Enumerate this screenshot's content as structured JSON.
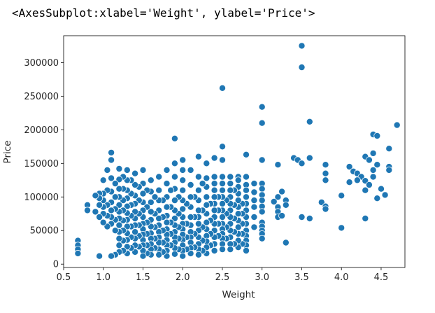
{
  "output_repr": "<AxesSubplot:xlabel='Weight', ylabel='Price'>",
  "chart_data": {
    "type": "scatter",
    "xlabel": "Weight",
    "ylabel": "Price",
    "xlim": [
      0.5,
      4.8
    ],
    "ylim": [
      -5000,
      340000
    ],
    "xticks": [
      0.5,
      1.0,
      1.5,
      2.0,
      2.5,
      3.0,
      3.5,
      4.0,
      4.5
    ],
    "xtick_labels": [
      "0.5",
      "1.0",
      "1.5",
      "2.0",
      "2.5",
      "3.0",
      "3.5",
      "4.0",
      "4.5"
    ],
    "yticks": [
      0,
      50000,
      100000,
      150000,
      200000,
      250000,
      300000
    ],
    "ytick_labels": [
      "0",
      "50000",
      "100000",
      "150000",
      "200000",
      "250000",
      "300000"
    ],
    "grid": false,
    "marker_color": "#1f77b4",
    "marker_edge_color": "#ffffff",
    "points": [
      [
        3.5,
        325000
      ],
      [
        3.5,
        293000
      ],
      [
        2.5,
        262000
      ],
      [
        3.0,
        234000
      ],
      [
        3.0,
        210000
      ],
      [
        3.6,
        212000
      ],
      [
        1.9,
        187000
      ],
      [
        4.7,
        207000
      ],
      [
        4.4,
        193000
      ],
      [
        4.45,
        191000
      ],
      [
        2.5,
        175000
      ],
      [
        4.6,
        172000
      ],
      [
        2.8,
        163000
      ],
      [
        1.1,
        166000
      ],
      [
        3.4,
        158000
      ],
      [
        3.45,
        155000
      ],
      [
        3.5,
        150000
      ],
      [
        3.6,
        158000
      ],
      [
        4.3,
        160000
      ],
      [
        4.35,
        155000
      ],
      [
        4.4,
        165000
      ],
      [
        4.45,
        148000
      ],
      [
        4.1,
        145000
      ],
      [
        4.15,
        138000
      ],
      [
        4.2,
        135000
      ],
      [
        4.25,
        130000
      ],
      [
        4.3,
        124000
      ],
      [
        4.2,
        125000
      ],
      [
        4.6,
        145000
      ],
      [
        4.6,
        140000
      ],
      [
        4.5,
        112000
      ],
      [
        4.55,
        103000
      ],
      [
        4.45,
        98000
      ],
      [
        4.3,
        110000
      ],
      [
        4.35,
        118000
      ],
      [
        4.4,
        130000
      ],
      [
        4.4,
        140000
      ],
      [
        4.1,
        122000
      ],
      [
        4.0,
        102000
      ],
      [
        3.8,
        148000
      ],
      [
        3.8,
        135000
      ],
      [
        3.8,
        125000
      ],
      [
        3.75,
        92000
      ],
      [
        3.8,
        86000
      ],
      [
        3.8,
        82000
      ],
      [
        3.5,
        70000
      ],
      [
        3.6,
        68000
      ],
      [
        4.0,
        54000
      ],
      [
        4.3,
        68000
      ],
      [
        3.3,
        32000
      ],
      [
        3.25,
        108000
      ],
      [
        3.3,
        95000
      ],
      [
        3.3,
        88000
      ],
      [
        3.2,
        148000
      ],
      [
        3.2,
        100000
      ],
      [
        3.15,
        93000
      ],
      [
        3.2,
        85000
      ],
      [
        3.2,
        78000
      ],
      [
        3.2,
        70000
      ],
      [
        3.25,
        72000
      ],
      [
        3.0,
        155000
      ],
      [
        3.0,
        120000
      ],
      [
        3.0,
        112000
      ],
      [
        3.0,
        103000
      ],
      [
        3.0,
        95000
      ],
      [
        3.0,
        86000
      ],
      [
        3.0,
        78000
      ],
      [
        3.0,
        62000
      ],
      [
        3.0,
        56000
      ],
      [
        3.0,
        50000
      ],
      [
        3.0,
        45000
      ],
      [
        3.0,
        38000
      ],
      [
        2.9,
        120000
      ],
      [
        2.9,
        107000
      ],
      [
        2.9,
        95000
      ],
      [
        2.9,
        85000
      ],
      [
        2.9,
        70000
      ],
      [
        2.9,
        55000
      ],
      [
        2.8,
        130000
      ],
      [
        2.8,
        118000
      ],
      [
        2.8,
        110000
      ],
      [
        2.8,
        100000
      ],
      [
        2.8,
        90000
      ],
      [
        2.8,
        80000
      ],
      [
        2.8,
        70000
      ],
      [
        2.8,
        60000
      ],
      [
        2.8,
        50000
      ],
      [
        2.8,
        42000
      ],
      [
        2.8,
        35000
      ],
      [
        2.8,
        28000
      ],
      [
        2.8,
        20000
      ],
      [
        2.75,
        90000
      ],
      [
        2.75,
        75000
      ],
      [
        2.75,
        60000
      ],
      [
        2.75,
        45000
      ],
      [
        2.75,
        30000
      ],
      [
        2.7,
        130000
      ],
      [
        2.7,
        125000
      ],
      [
        2.7,
        115000
      ],
      [
        2.7,
        105000
      ],
      [
        2.7,
        95000
      ],
      [
        2.7,
        85000
      ],
      [
        2.7,
        75000
      ],
      [
        2.7,
        65000
      ],
      [
        2.7,
        55000
      ],
      [
        2.7,
        45000
      ],
      [
        2.7,
        35000
      ],
      [
        2.7,
        25000
      ],
      [
        2.65,
        110000
      ],
      [
        2.65,
        88000
      ],
      [
        2.65,
        68000
      ],
      [
        2.65,
        48000
      ],
      [
        2.65,
        30000
      ],
      [
        2.6,
        130000
      ],
      [
        2.6,
        120000
      ],
      [
        2.6,
        110000
      ],
      [
        2.6,
        100000
      ],
      [
        2.6,
        90000
      ],
      [
        2.6,
        80000
      ],
      [
        2.6,
        70000
      ],
      [
        2.6,
        60000
      ],
      [
        2.6,
        50000
      ],
      [
        2.6,
        40000
      ],
      [
        2.6,
        30000
      ],
      [
        2.6,
        22000
      ],
      [
        2.55,
        95000
      ],
      [
        2.55,
        75000
      ],
      [
        2.55,
        55000
      ],
      [
        2.55,
        38000
      ],
      [
        2.5,
        155000
      ],
      [
        2.5,
        130000
      ],
      [
        2.5,
        120000
      ],
      [
        2.5,
        110000
      ],
      [
        2.5,
        100000
      ],
      [
        2.5,
        90000
      ],
      [
        2.5,
        80000
      ],
      [
        2.5,
        70000
      ],
      [
        2.5,
        60000
      ],
      [
        2.5,
        52000
      ],
      [
        2.5,
        45000
      ],
      [
        2.5,
        38000
      ],
      [
        2.5,
        30000
      ],
      [
        2.5,
        22000
      ],
      [
        2.45,
        100000
      ],
      [
        2.45,
        80000
      ],
      [
        2.45,
        60000
      ],
      [
        2.45,
        42000
      ],
      [
        2.4,
        158000
      ],
      [
        2.4,
        130000
      ],
      [
        2.4,
        120000
      ],
      [
        2.4,
        110000
      ],
      [
        2.4,
        100000
      ],
      [
        2.4,
        90000
      ],
      [
        2.4,
        80000
      ],
      [
        2.4,
        70000
      ],
      [
        2.4,
        60000
      ],
      [
        2.4,
        50000
      ],
      [
        2.4,
        40000
      ],
      [
        2.4,
        30000
      ],
      [
        2.4,
        20000
      ],
      [
        2.35,
        90000
      ],
      [
        2.35,
        65000
      ],
      [
        2.35,
        45000
      ],
      [
        2.35,
        28000
      ],
      [
        2.3,
        150000
      ],
      [
        2.3,
        128000
      ],
      [
        2.3,
        115000
      ],
      [
        2.3,
        100000
      ],
      [
        2.3,
        88000
      ],
      [
        2.3,
        75000
      ],
      [
        2.3,
        62000
      ],
      [
        2.3,
        52000
      ],
      [
        2.3,
        42000
      ],
      [
        2.3,
        34000
      ],
      [
        2.3,
        25000
      ],
      [
        2.3,
        16000
      ],
      [
        2.25,
        120000
      ],
      [
        2.25,
        80000
      ],
      [
        2.25,
        55000
      ],
      [
        2.25,
        35000
      ],
      [
        2.25,
        20000
      ],
      [
        2.2,
        160000
      ],
      [
        2.2,
        130000
      ],
      [
        2.2,
        110000
      ],
      [
        2.2,
        95000
      ],
      [
        2.2,
        80000
      ],
      [
        2.2,
        70000
      ],
      [
        2.2,
        60000
      ],
      [
        2.2,
        50000
      ],
      [
        2.2,
        40000
      ],
      [
        2.2,
        30000
      ],
      [
        2.2,
        22000
      ],
      [
        2.2,
        14000
      ],
      [
        2.15,
        100000
      ],
      [
        2.15,
        70000
      ],
      [
        2.15,
        45000
      ],
      [
        2.15,
        25000
      ],
      [
        2.1,
        140000
      ],
      [
        2.1,
        118000
      ],
      [
        2.1,
        100000
      ],
      [
        2.1,
        85000
      ],
      [
        2.1,
        70000
      ],
      [
        2.1,
        58000
      ],
      [
        2.1,
        48000
      ],
      [
        2.1,
        40000
      ],
      [
        2.1,
        32000
      ],
      [
        2.1,
        24000
      ],
      [
        2.1,
        16000
      ],
      [
        2.05,
        90000
      ],
      [
        2.05,
        60000
      ],
      [
        2.05,
        40000
      ],
      [
        2.05,
        22000
      ],
      [
        2.0,
        155000
      ],
      [
        2.0,
        140000
      ],
      [
        2.0,
        125000
      ],
      [
        2.0,
        110000
      ],
      [
        2.0,
        95000
      ],
      [
        2.0,
        82000
      ],
      [
        2.0,
        70000
      ],
      [
        2.0,
        60000
      ],
      [
        2.0,
        52000
      ],
      [
        2.0,
        44000
      ],
      [
        2.0,
        36000
      ],
      [
        2.0,
        28000
      ],
      [
        2.0,
        20000
      ],
      [
        2.0,
        12000
      ],
      [
        1.95,
        100000
      ],
      [
        1.95,
        75000
      ],
      [
        1.95,
        55000
      ],
      [
        1.95,
        38000
      ],
      [
        1.95,
        22000
      ],
      [
        1.9,
        150000
      ],
      [
        1.9,
        130000
      ],
      [
        1.9,
        112000
      ],
      [
        1.9,
        95000
      ],
      [
        1.9,
        80000
      ],
      [
        1.9,
        68000
      ],
      [
        1.9,
        58000
      ],
      [
        1.9,
        48000
      ],
      [
        1.9,
        40000
      ],
      [
        1.9,
        32000
      ],
      [
        1.9,
        24000
      ],
      [
        1.9,
        15000
      ],
      [
        1.85,
        110000
      ],
      [
        1.85,
        85000
      ],
      [
        1.85,
        62000
      ],
      [
        1.85,
        45000
      ],
      [
        1.85,
        28000
      ],
      [
        1.8,
        140000
      ],
      [
        1.8,
        120000
      ],
      [
        1.8,
        100000
      ],
      [
        1.8,
        85000
      ],
      [
        1.8,
        72000
      ],
      [
        1.8,
        62000
      ],
      [
        1.8,
        52000
      ],
      [
        1.8,
        44000
      ],
      [
        1.8,
        36000
      ],
      [
        1.8,
        28000
      ],
      [
        1.8,
        20000
      ],
      [
        1.8,
        12000
      ],
      [
        1.75,
        95000
      ],
      [
        1.75,
        70000
      ],
      [
        1.75,
        50000
      ],
      [
        1.75,
        32000
      ],
      [
        1.75,
        18000
      ],
      [
        1.7,
        130000
      ],
      [
        1.7,
        110000
      ],
      [
        1.7,
        95000
      ],
      [
        1.7,
        80000
      ],
      [
        1.7,
        68000
      ],
      [
        1.7,
        58000
      ],
      [
        1.7,
        48000
      ],
      [
        1.7,
        40000
      ],
      [
        1.7,
        32000
      ],
      [
        1.7,
        22000
      ],
      [
        1.7,
        14000
      ],
      [
        1.65,
        100000
      ],
      [
        1.65,
        75000
      ],
      [
        1.65,
        55000
      ],
      [
        1.65,
        38000
      ],
      [
        1.65,
        24000
      ],
      [
        1.6,
        125000
      ],
      [
        1.6,
        108000
      ],
      [
        1.6,
        92000
      ],
      [
        1.6,
        78000
      ],
      [
        1.6,
        66000
      ],
      [
        1.6,
        56000
      ],
      [
        1.6,
        46000
      ],
      [
        1.6,
        38000
      ],
      [
        1.6,
        30000
      ],
      [
        1.6,
        22000
      ],
      [
        1.6,
        14000
      ],
      [
        1.55,
        110000
      ],
      [
        1.55,
        85000
      ],
      [
        1.55,
        62000
      ],
      [
        1.55,
        45000
      ],
      [
        1.55,
        28000
      ],
      [
        1.55,
        16000
      ],
      [
        1.5,
        140000
      ],
      [
        1.5,
        120000
      ],
      [
        1.5,
        105000
      ],
      [
        1.5,
        92000
      ],
      [
        1.5,
        80000
      ],
      [
        1.5,
        70000
      ],
      [
        1.5,
        60000
      ],
      [
        1.5,
        52000
      ],
      [
        1.5,
        44000
      ],
      [
        1.5,
        36000
      ],
      [
        1.5,
        28000
      ],
      [
        1.5,
        20000
      ],
      [
        1.5,
        12000
      ],
      [
        1.45,
        115000
      ],
      [
        1.45,
        95000
      ],
      [
        1.45,
        75000
      ],
      [
        1.45,
        58000
      ],
      [
        1.45,
        42000
      ],
      [
        1.45,
        26000
      ],
      [
        1.4,
        135000
      ],
      [
        1.4,
        118000
      ],
      [
        1.4,
        102000
      ],
      [
        1.4,
        90000
      ],
      [
        1.4,
        78000
      ],
      [
        1.4,
        68000
      ],
      [
        1.4,
        58000
      ],
      [
        1.4,
        48000
      ],
      [
        1.4,
        38000
      ],
      [
        1.4,
        28000
      ],
      [
        1.4,
        18000
      ],
      [
        1.35,
        125000
      ],
      [
        1.35,
        105000
      ],
      [
        1.35,
        88000
      ],
      [
        1.35,
        72000
      ],
      [
        1.35,
        56000
      ],
      [
        1.35,
        40000
      ],
      [
        1.35,
        24000
      ],
      [
        1.3,
        140000
      ],
      [
        1.3,
        125000
      ],
      [
        1.3,
        110000
      ],
      [
        1.3,
        98000
      ],
      [
        1.3,
        86000
      ],
      [
        1.3,
        76000
      ],
      [
        1.3,
        66000
      ],
      [
        1.3,
        56000
      ],
      [
        1.3,
        46000
      ],
      [
        1.3,
        36000
      ],
      [
        1.3,
        26000
      ],
      [
        1.3,
        16000
      ],
      [
        1.25,
        130000
      ],
      [
        1.25,
        112000
      ],
      [
        1.25,
        95000
      ],
      [
        1.25,
        80000
      ],
      [
        1.25,
        65000
      ],
      [
        1.25,
        50000
      ],
      [
        1.25,
        35000
      ],
      [
        1.25,
        20000
      ],
      [
        1.2,
        142000
      ],
      [
        1.2,
        126000
      ],
      [
        1.2,
        112000
      ],
      [
        1.2,
        100000
      ],
      [
        1.2,
        88000
      ],
      [
        1.2,
        78000
      ],
      [
        1.2,
        68000
      ],
      [
        1.2,
        58000
      ],
      [
        1.2,
        48000
      ],
      [
        1.2,
        38000
      ],
      [
        1.2,
        28000
      ],
      [
        1.2,
        18000
      ],
      [
        1.15,
        120000
      ],
      [
        1.15,
        100000
      ],
      [
        1.15,
        82000
      ],
      [
        1.15,
        66000
      ],
      [
        1.15,
        50000
      ],
      [
        1.15,
        14000
      ],
      [
        1.1,
        155000
      ],
      [
        1.1,
        128000
      ],
      [
        1.1,
        108000
      ],
      [
        1.1,
        92000
      ],
      [
        1.1,
        80000
      ],
      [
        1.1,
        70000
      ],
      [
        1.1,
        60000
      ],
      [
        1.1,
        12000
      ],
      [
        1.05,
        140000
      ],
      [
        1.05,
        110000
      ],
      [
        1.05,
        88000
      ],
      [
        1.05,
        72000
      ],
      [
        1.05,
        56000
      ],
      [
        1.0,
        125000
      ],
      [
        1.0,
        105000
      ],
      [
        1.0,
        95000
      ],
      [
        1.0,
        85000
      ],
      [
        1.0,
        75000
      ],
      [
        1.0,
        62000
      ],
      [
        0.95,
        105000
      ],
      [
        0.95,
        98000
      ],
      [
        0.95,
        88000
      ],
      [
        0.95,
        70000
      ],
      [
        0.95,
        12000
      ],
      [
        0.9,
        102000
      ],
      [
        0.9,
        78000
      ],
      [
        0.8,
        88000
      ],
      [
        0.8,
        80000
      ],
      [
        0.68,
        35000
      ],
      [
        0.68,
        28000
      ],
      [
        0.68,
        22000
      ],
      [
        0.68,
        16000
      ]
    ]
  }
}
